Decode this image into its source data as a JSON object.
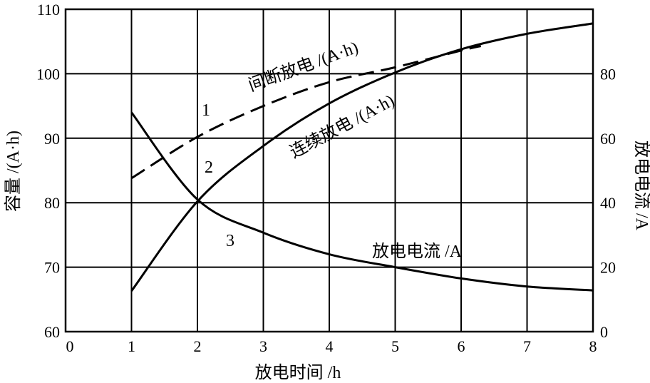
{
  "chart_data": {
    "type": "line",
    "xlabel": "放电时间 /h",
    "ylabel_left": "容量 /(A·h)",
    "ylabel_right": "放电电流 /A",
    "xlim": [
      0,
      8
    ],
    "ylim_left": [
      60,
      110
    ],
    "ylim_right": [
      0,
      100
    ],
    "x_ticks": [
      "0",
      "1",
      "2",
      "3",
      "4",
      "5",
      "6",
      "7",
      "8"
    ],
    "y_ticks_left": [
      "60",
      "70",
      "80",
      "90",
      "100",
      "110"
    ],
    "y_ticks_right": [
      "0",
      "20",
      "40",
      "60",
      "80"
    ],
    "grid": true,
    "series": [
      {
        "name": "间断放电 /(A·h)",
        "number": "1",
        "axis": "left",
        "style": "dashed",
        "x": [
          1,
          2,
          3,
          4,
          5,
          6,
          6.3
        ],
        "values": [
          83.8,
          90.2,
          95,
          98.7,
          101,
          103.6,
          104.3
        ]
      },
      {
        "name": "连续放电 /(A·h)",
        "number": "2",
        "axis": "left",
        "style": "solid",
        "x": [
          1,
          2,
          3,
          4,
          5,
          6,
          7,
          8
        ],
        "values": [
          66.3,
          80.2,
          88.8,
          95.4,
          100.2,
          103.8,
          106.2,
          107.8
        ]
      },
      {
        "name": "放电电流 /A",
        "number": "3",
        "axis": "right",
        "style": "solid",
        "x": [
          1,
          2,
          3,
          4,
          5,
          6,
          7,
          8
        ],
        "values": [
          68,
          41,
          30.7,
          24,
          20,
          16.5,
          14,
          12.8
        ]
      }
    ]
  }
}
